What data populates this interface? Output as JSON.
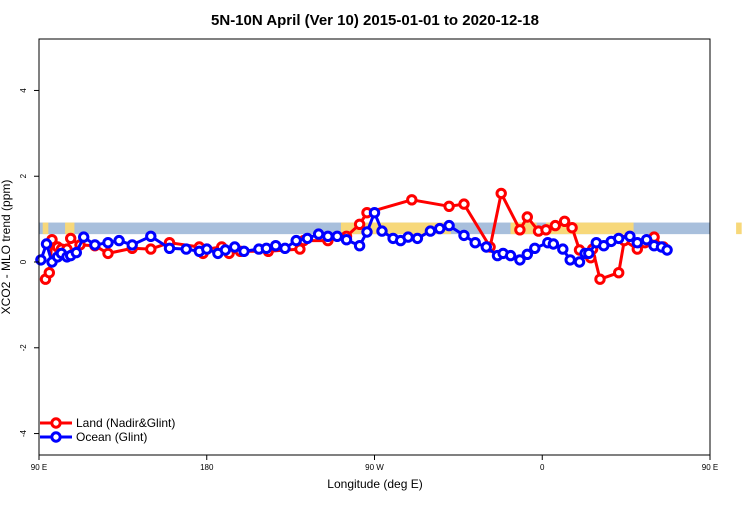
{
  "chart_data": {
    "type": "line",
    "title": "5N-10N April (Ver 10)   2015-01-01 to 2020-12-18",
    "xlabel": "Longitude (deg E)",
    "ylabel": "XCO2 - MLO trend (ppm)",
    "xlim": [
      90,
      450
    ],
    "ylim": [
      -4.5,
      5.2
    ],
    "x_ticks": [
      {
        "value": 90,
        "label": "90 E"
      },
      {
        "value": 180,
        "label": "180"
      },
      {
        "value": 270,
        "label": "90 W"
      },
      {
        "value": 360,
        "label": "0"
      },
      {
        "value": 450,
        "label": "90 E"
      },
      {
        "value": 540,
        "label": "180"
      }
    ],
    "y_ticks": [
      {
        "value": -4,
        "label": "-4"
      },
      {
        "value": -2,
        "label": "-2"
      },
      {
        "value": 0,
        "label": "0"
      },
      {
        "value": 2,
        "label": "2"
      },
      {
        "value": 4,
        "label": "4"
      }
    ],
    "band": {
      "ymin": 0.65,
      "ymax": 0.92,
      "colors": {
        "ocean": "#a8bfdc",
        "land": "#f7d87a"
      }
    },
    "land_regions": [
      [
        92,
        95
      ],
      [
        104,
        109
      ],
      [
        252,
        311
      ],
      [
        343,
        357
      ],
      [
        362,
        409
      ],
      [
        464,
        467
      ],
      [
        476,
        481
      ]
    ],
    "legend_position": "bottom-left",
    "series": [
      {
        "name": "Land (Nadir&Glint)",
        "color": "#ff0000",
        "x": [
          93.5,
          95.5,
          97,
          100,
          102,
          105,
          107,
          112,
          120,
          127,
          140,
          150,
          160,
          176,
          178,
          180,
          188,
          192,
          198,
          213,
          230,
          232,
          245,
          255,
          262,
          266,
          290,
          310,
          318,
          332,
          338,
          348,
          352,
          358,
          362,
          367,
          372,
          376,
          380,
          386,
          387,
          391,
          401,
          404,
          411,
          415,
          420,
          425
        ],
        "y": [
          -0.4,
          -0.25,
          0.52,
          0.35,
          0.3,
          0.3,
          0.55,
          0.4,
          0.38,
          0.2,
          0.32,
          0.3,
          0.45,
          0.35,
          0.2,
          0.3,
          0.35,
          0.2,
          0.25,
          0.25,
          0.3,
          0.5,
          0.5,
          0.6,
          0.88,
          1.15,
          1.45,
          1.3,
          1.35,
          0.35,
          1.6,
          0.75,
          1.05,
          0.72,
          0.75,
          0.85,
          0.95,
          0.8,
          0.28,
          0.1,
          0.3,
          -0.4,
          -0.25,
          0.5,
          0.3,
          0.45,
          0.58,
          0.35
        ]
      },
      {
        "name": "Ocean (Glint)",
        "color": "#0000ff",
        "x": [
          91,
          94,
          97,
          100,
          102,
          105,
          107,
          110,
          114,
          120,
          127,
          133,
          140,
          150,
          160,
          169,
          176,
          180,
          186,
          190,
          195,
          200,
          208,
          212,
          217,
          222,
          228,
          234,
          240,
          245,
          250,
          255,
          262,
          266,
          270,
          274,
          280,
          284,
          288,
          293,
          300,
          305,
          310,
          318,
          324,
          330,
          336,
          339,
          343,
          348,
          352,
          356,
          363,
          366,
          371,
          375,
          380,
          383,
          385,
          389,
          393,
          397,
          401,
          407,
          411,
          416,
          420,
          424,
          427
        ],
        "y": [
          0.05,
          0.42,
          0.0,
          0.12,
          0.2,
          0.12,
          0.15,
          0.22,
          0.58,
          0.4,
          0.45,
          0.5,
          0.4,
          0.6,
          0.32,
          0.3,
          0.25,
          0.3,
          0.2,
          0.28,
          0.35,
          0.25,
          0.3,
          0.32,
          0.38,
          0.32,
          0.5,
          0.55,
          0.65,
          0.6,
          0.6,
          0.52,
          0.38,
          0.7,
          1.15,
          0.72,
          0.55,
          0.5,
          0.58,
          0.55,
          0.72,
          0.78,
          0.85,
          0.62,
          0.45,
          0.35,
          0.15,
          0.2,
          0.15,
          0.05,
          0.18,
          0.32,
          0.45,
          0.42,
          0.3,
          0.05,
          0.0,
          0.2,
          0.2,
          0.45,
          0.38,
          0.48,
          0.55,
          0.6,
          0.45,
          0.52,
          0.38,
          0.35,
          0.28
        ]
      }
    ]
  }
}
